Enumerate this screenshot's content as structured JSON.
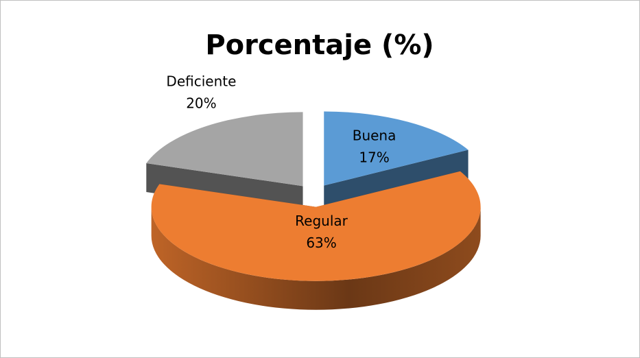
{
  "chart_data": {
    "type": "pie",
    "title": "Porcentaje (%)",
    "categories": [
      "Buena",
      "Regular",
      "Deficiente"
    ],
    "values": [
      17,
      63,
      20
    ],
    "value_labels": [
      "17%",
      "63%",
      "20%"
    ],
    "colors": [
      "#5b9bd5",
      "#ed7d31",
      "#a5a5a5"
    ]
  }
}
